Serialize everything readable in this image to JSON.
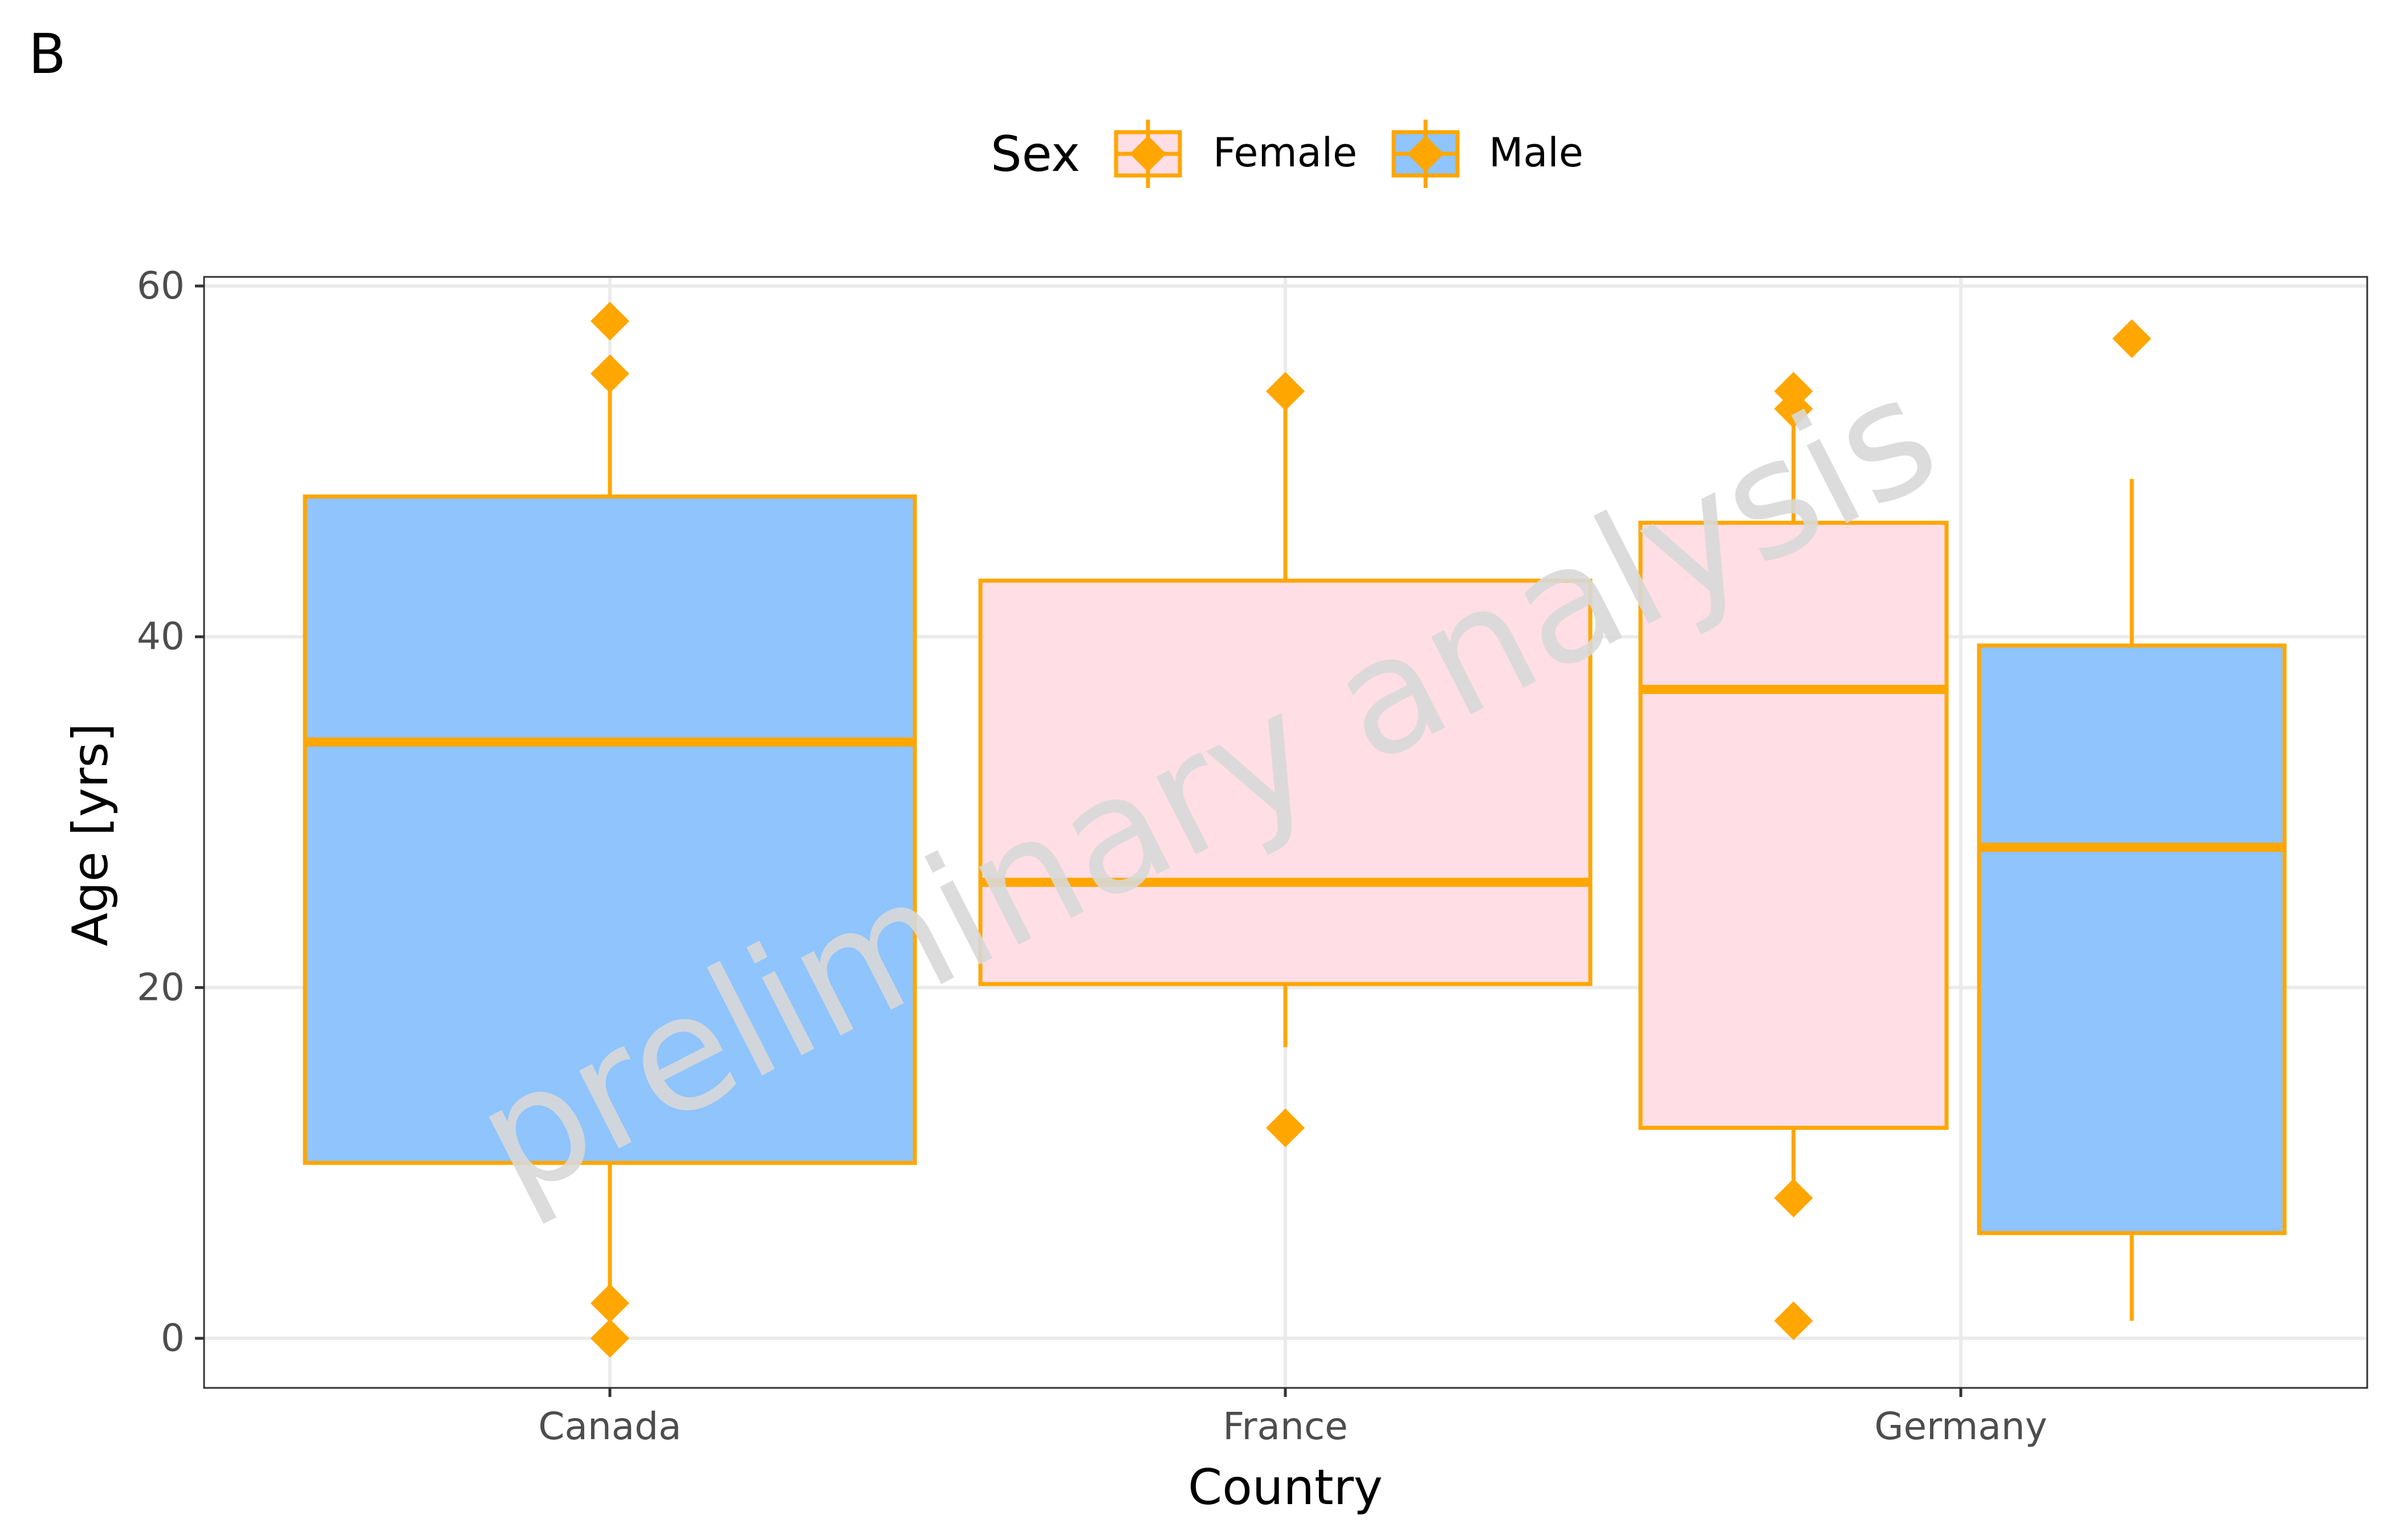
{
  "panel_label": "B",
  "watermark": "preliminary analysis",
  "legend": {
    "title": "Sex",
    "items": [
      {
        "label": "Female",
        "fill": "#ffdee5"
      },
      {
        "label": "Male",
        "fill": "#8fc4fc"
      }
    ]
  },
  "colors": {
    "stroke": "#ffa600",
    "female_fill": "#ffdee5",
    "male_fill": "#8fc4fc",
    "grid": "#ebebeb",
    "axis_text": "#4d4d4d",
    "watermark": "#d9d9d9"
  },
  "chart_data": {
    "type": "boxplot",
    "xlabel": "Country",
    "ylabel": "Age [yrs]",
    "categories": [
      "Canada",
      "France",
      "Germany"
    ],
    "y_ticks": [
      0,
      20,
      40,
      60
    ],
    "ylim": [
      -2.8,
      60.8
    ],
    "grid": true,
    "legend_position": "top",
    "boxes": [
      {
        "category": "Canada",
        "sex": "Male",
        "q1": 10,
        "median": 34,
        "q3": 48,
        "whisker_low": 2,
        "whisker_high": 55,
        "outliers": [
          58,
          55,
          2,
          0
        ]
      },
      {
        "category": "France",
        "sex": "Female",
        "q1": 20.2,
        "median": 26,
        "q3": 43.2,
        "whisker_low": 16.6,
        "whisker_high": 54,
        "outliers": [
          54,
          12
        ]
      },
      {
        "category": "Germany",
        "sex": "Female",
        "q1": 12,
        "median": 37,
        "q3": 46.5,
        "whisker_low": 8,
        "whisker_high": 54,
        "outliers": [
          54,
          53,
          8,
          1
        ]
      },
      {
        "category": "Germany",
        "sex": "Male",
        "q1": 6,
        "median": 28,
        "q3": 39.5,
        "whisker_low": 1,
        "whisker_high": 49,
        "outliers": [
          57
        ]
      }
    ]
  }
}
